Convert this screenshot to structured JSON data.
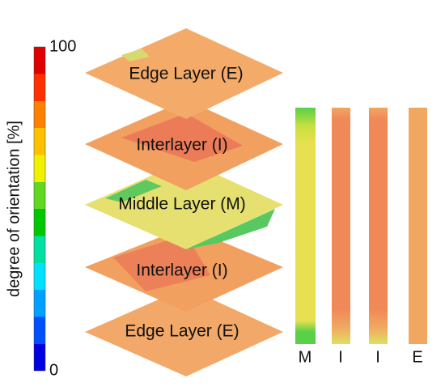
{
  "colorbar": {
    "label": "degree of orientation [%]",
    "max": "100",
    "min": "0"
  },
  "layers": [
    {
      "label": "Edge Layer (E)"
    },
    {
      "label": "Interlayer (I)"
    },
    {
      "label": "Middle Layer (M)"
    },
    {
      "label": "Interlayer (I)"
    },
    {
      "label": "Edge Layer (E)"
    }
  ],
  "strips": [
    {
      "label": "M"
    },
    {
      "label": "I"
    },
    {
      "label": "I"
    },
    {
      "label": "E"
    }
  ]
}
